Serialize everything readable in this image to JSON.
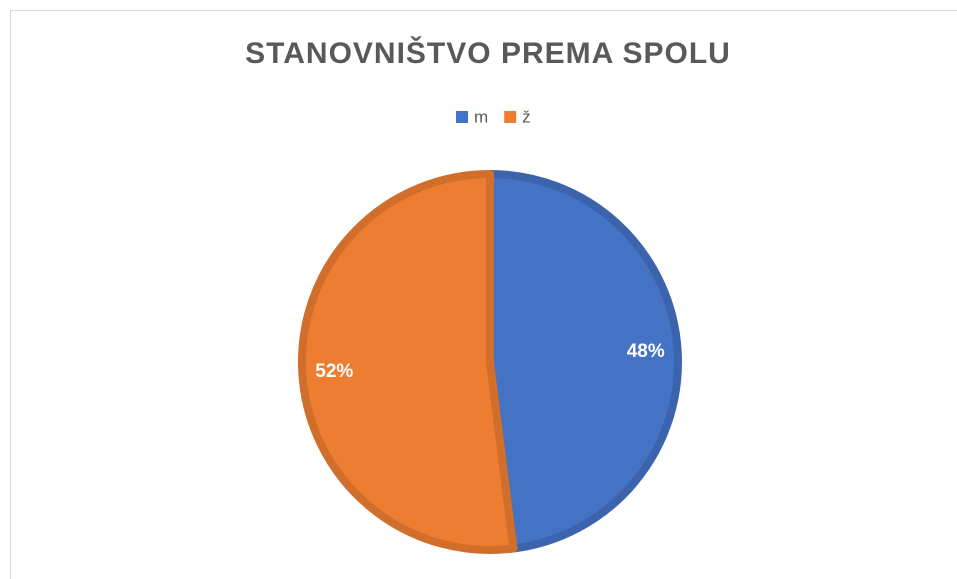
{
  "chart_data": {
    "type": "pie",
    "title": "STANOVNIŠTVO PREMA SPOLU",
    "categories": [
      "m",
      "ž"
    ],
    "values": [
      48,
      52
    ],
    "value_labels": [
      "48%",
      "52%"
    ],
    "colors": [
      "#4472c4",
      "#ed7d31"
    ],
    "legend": "top"
  }
}
